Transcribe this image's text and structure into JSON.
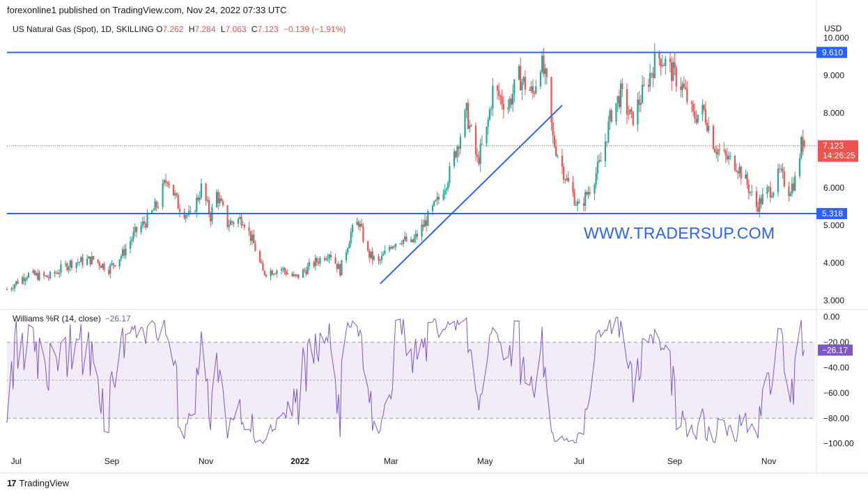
{
  "header": {
    "publisher": "forexonline1 published on TradingView.com, Nov 24, 2022 07:33 UTC"
  },
  "legend": {
    "symbol": "US Natural Gas (Spot), 1D, SKILLING",
    "open_label": "O",
    "open": "7.262",
    "high_label": "H",
    "high": "7.284",
    "low_label": "L",
    "low": "7.063",
    "close_label": "C",
    "close": "7.123",
    "change": "−0.139 (−1.91%)"
  },
  "indicator_legend": {
    "name": "Williams %R (14, close)",
    "value": "−26.17"
  },
  "currency": "USD",
  "watermark": "WWW.TRADERSUP.COM",
  "footer": {
    "brand": "TradingView"
  },
  "colors": {
    "up": "#26a69a",
    "down": "#ef5350",
    "line": "#2962ff",
    "wr": "#7e57c2",
    "wr_band": "#ede7f6",
    "price_tag": "#ef5350"
  },
  "chart_data": [
    {
      "type": "candlestick",
      "title": "US Natural Gas (Spot), 1D, SKILLING",
      "y_unit": "USD",
      "y_ticks": [
        "3.000",
        "4.000",
        "5.000",
        "6.000",
        "7.000",
        "8.000",
        "9.000",
        "10.000"
      ],
      "ylim": [
        2.8,
        10.45
      ],
      "x_ticks": [
        "Jul",
        "Sep",
        "Nov",
        "2022",
        "Mar",
        "May",
        "Jul",
        "Sep",
        "Nov"
      ],
      "x_tick_dates": [
        "2021-07-01",
        "2021-09-01",
        "2021-11-01",
        "2022-01-01",
        "2022-03-01",
        "2022-05-01",
        "2022-07-01",
        "2022-09-01",
        "2022-11-01"
      ],
      "x_range": [
        "2021-06-25",
        "2022-12-01"
      ],
      "price_path": [
        [
          "2021-06-25",
          3.3
        ],
        [
          "2021-07-08",
          3.7
        ],
        [
          "2021-07-22",
          3.62
        ],
        [
          "2021-08-05",
          4.0
        ],
        [
          "2021-08-20",
          4.1
        ],
        [
          "2021-08-30",
          3.85
        ],
        [
          "2021-09-08",
          4.25
        ],
        [
          "2021-09-16",
          4.8
        ],
        [
          "2021-09-25",
          5.2
        ],
        [
          "2021-10-01",
          5.6
        ],
        [
          "2021-10-07",
          6.3
        ],
        [
          "2021-10-14",
          5.55
        ],
        [
          "2021-10-22",
          5.2
        ],
        [
          "2021-10-29",
          6.0
        ],
        [
          "2021-11-04",
          5.25
        ],
        [
          "2021-11-08",
          5.85
        ],
        [
          "2021-11-15",
          5.05
        ],
        [
          "2021-11-25",
          5.2
        ],
        [
          "2021-12-02",
          4.5
        ],
        [
          "2021-12-08",
          3.75
        ],
        [
          "2021-12-20",
          3.85
        ],
        [
          "2021-12-29",
          3.6
        ],
        [
          "2022-01-07",
          3.9
        ],
        [
          "2022-01-20",
          4.3
        ],
        [
          "2022-01-27",
          3.8
        ],
        [
          "2022-02-03",
          4.8
        ],
        [
          "2022-02-08",
          5.1
        ],
        [
          "2022-02-14",
          4.25
        ],
        [
          "2022-02-21",
          4.0
        ],
        [
          "2022-03-01",
          4.5
        ],
        [
          "2022-03-08",
          4.65
        ],
        [
          "2022-03-14",
          4.5
        ],
        [
          "2022-03-22",
          5.0
        ],
        [
          "2022-04-01",
          5.7
        ],
        [
          "2022-04-08",
          6.4
        ],
        [
          "2022-04-14",
          7.3
        ],
        [
          "2022-04-19",
          8.0
        ],
        [
          "2022-04-26",
          6.7
        ],
        [
          "2022-05-02",
          7.5
        ],
        [
          "2022-05-06",
          8.6
        ],
        [
          "2022-05-16",
          8.2
        ],
        [
          "2022-05-23",
          8.95
        ],
        [
          "2022-06-01",
          8.5
        ],
        [
          "2022-06-06",
          9.4
        ],
        [
          "2022-06-10",
          8.7
        ],
        [
          "2022-06-14",
          7.3
        ],
        [
          "2022-06-23",
          6.2
        ],
        [
          "2022-07-01",
          5.45
        ],
        [
          "2022-07-08",
          6.0
        ],
        [
          "2022-07-15",
          6.7
        ],
        [
          "2022-07-22",
          8.0
        ],
        [
          "2022-07-28",
          8.5
        ],
        [
          "2022-08-04",
          7.8
        ],
        [
          "2022-08-12",
          8.6
        ],
        [
          "2022-08-19",
          9.35
        ],
        [
          "2022-08-23",
          9.5
        ],
        [
          "2022-08-30",
          9.1
        ],
        [
          "2022-09-06",
          8.7
        ],
        [
          "2022-09-13",
          7.9
        ],
        [
          "2022-09-20",
          8.05
        ],
        [
          "2022-09-27",
          7.1
        ],
        [
          "2022-10-04",
          6.8
        ],
        [
          "2022-10-11",
          6.65
        ],
        [
          "2022-10-18",
          6.1
        ],
        [
          "2022-10-24",
          5.5
        ],
        [
          "2022-10-31",
          5.9
        ],
        [
          "2022-11-04",
          6.0
        ],
        [
          "2022-11-08",
          6.4
        ],
        [
          "2022-11-14",
          5.95
        ],
        [
          "2022-11-18",
          6.2
        ],
        [
          "2022-11-22",
          7.15
        ],
        [
          "2022-11-24",
          7.123
        ]
      ],
      "horizontal_lines": [
        {
          "value": 9.61,
          "label": "9.610"
        },
        {
          "value": 5.318,
          "label": "5.318"
        }
      ],
      "trendlines": [
        {
          "from": [
            "2022-02-22",
            3.45
          ],
          "to": [
            "2022-06-20",
            8.2
          ]
        }
      ],
      "last_price": {
        "value": 7.123,
        "label": "7.123",
        "countdown": "14:26:25"
      }
    },
    {
      "type": "line",
      "title": "Williams %R (14, close)",
      "y_ticks": [
        "0.00",
        "−20.00",
        "−40.00",
        "−60.00",
        "−80.00",
        "−100.00"
      ],
      "ylim": [
        -104,
        2
      ],
      "band": [
        -80,
        -20
      ],
      "levels": [
        -20,
        -50,
        -80
      ],
      "current": {
        "value": -26.17,
        "label": "−26.17"
      }
    }
  ]
}
